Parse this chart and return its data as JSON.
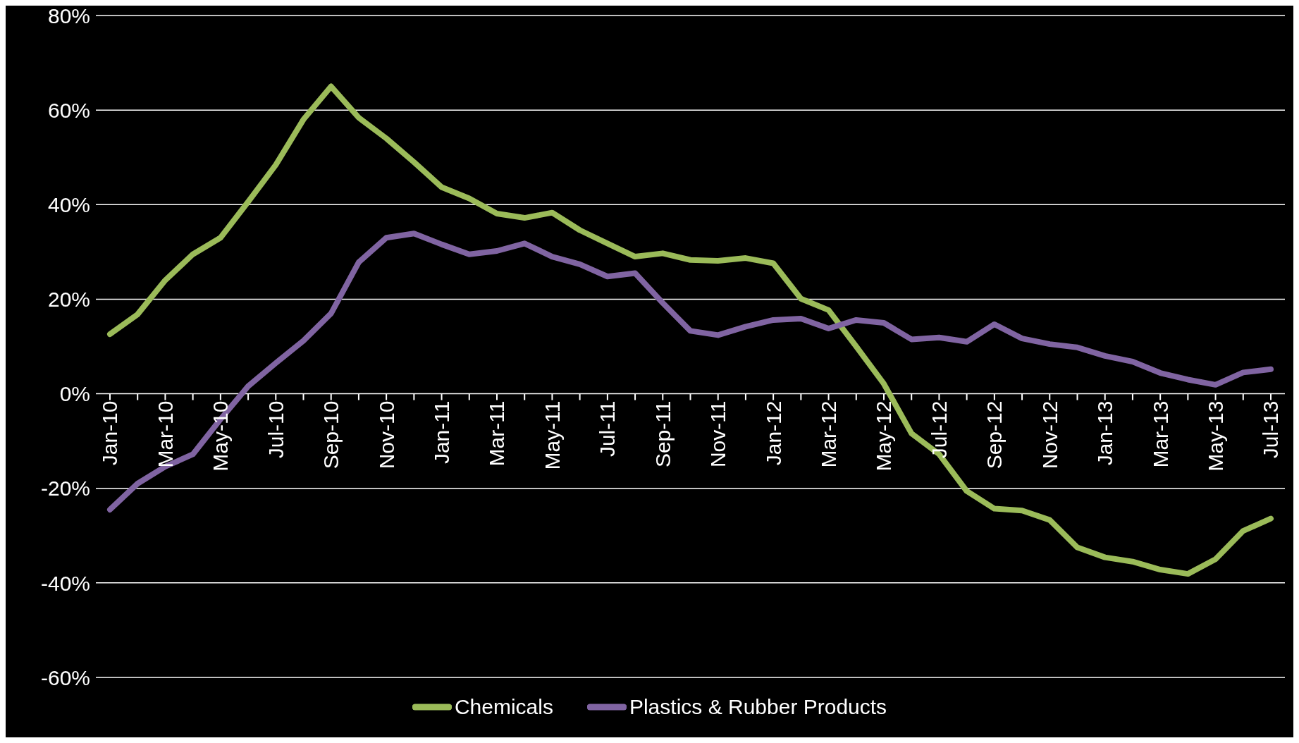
{
  "chart_data": {
    "type": "line",
    "categories": [
      "Jan-10",
      null,
      "Mar-10",
      null,
      "May-10",
      null,
      "Jul-10",
      null,
      "Sep-10",
      null,
      "Nov-10",
      null,
      "Jan-11",
      null,
      "Mar-11",
      null,
      "May-11",
      null,
      "Jul-11",
      null,
      "Sep-11",
      null,
      "Nov-11",
      null,
      "Jan-12",
      null,
      "Mar-12",
      null,
      "May-12",
      null,
      "Jul-12",
      null,
      "Sep-12",
      null,
      "Nov-12",
      null,
      "Jan-13",
      null,
      "Mar-13",
      null,
      "May-13",
      null,
      "Jul-13"
    ],
    "series": [
      {
        "name": "Chemicals",
        "color": "#9bbb59",
        "values": [
          12.6,
          16.8,
          24,
          29.5,
          33,
          40.6,
          48.4,
          58,
          65,
          58.4,
          54,
          49,
          43.7,
          41.3,
          38.1,
          37.2,
          38.3,
          34.6,
          31.8,
          29,
          29.7,
          28.3,
          28.1,
          28.7,
          27.6,
          20.1,
          17.7,
          10,
          2.1,
          -8.4,
          -12.8,
          -20.6,
          -24.3,
          -24.7,
          -26.7,
          -32.5,
          -34.6,
          -35.5,
          -37.2,
          -38.1,
          -35,
          -29,
          -26.4
        ]
      },
      {
        "name": "Plastics & Rubber Products",
        "color": "#8064a2",
        "values": [
          -24.5,
          -19,
          -15.4,
          -12.8,
          -5.4,
          1.6,
          6.5,
          11.2,
          17,
          27.8,
          33,
          33.9,
          31.6,
          29.5,
          30.2,
          31.8,
          29,
          27.4,
          24.8,
          25.5,
          19.2,
          13.3,
          12.4,
          14.2,
          15.6,
          15.9,
          13.8,
          15.6,
          15,
          11.5,
          11.9,
          11,
          14.7,
          11.7,
          10.5,
          9.8,
          8,
          6.8,
          4.4,
          3,
          1.9,
          4.5,
          5.2
        ]
      }
    ],
    "ylim": [
      -60,
      80
    ],
    "yticks": [
      {
        "value": -60,
        "label": "-60%"
      },
      {
        "value": -40,
        "label": "-40%"
      },
      {
        "value": -20,
        "label": "-20%"
      },
      {
        "value": 0,
        "label": "0%"
      },
      {
        "value": 20,
        "label": "20%"
      },
      {
        "value": 40,
        "label": "40%"
      },
      {
        "value": 60,
        "label": "60%"
      },
      {
        "value": 80,
        "label": "80%"
      }
    ],
    "grid": "y",
    "legend": "bottom",
    "marker": "none",
    "line_style": "solid"
  }
}
